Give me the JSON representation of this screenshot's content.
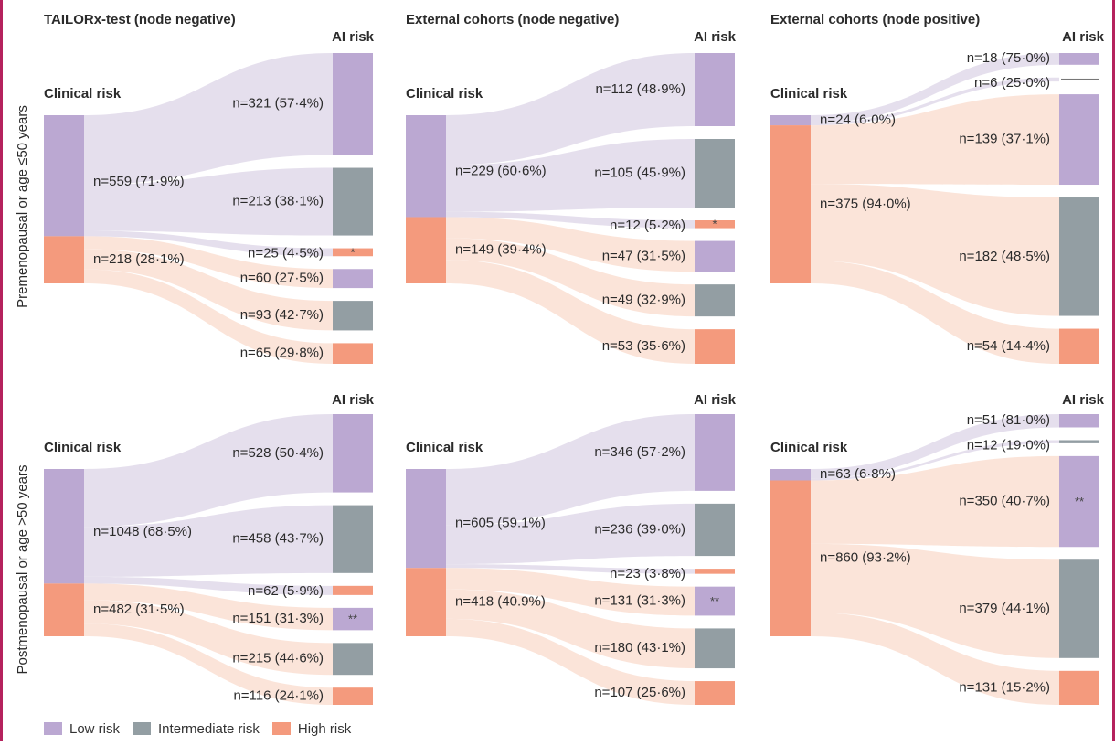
{
  "chart_data": [
    {
      "type": "sankey",
      "title": "TAILORx-test (node negative)",
      "row_label": "Premenopausal or age ≤50 years",
      "left_label": "Clinical risk",
      "right_label": "AI risk",
      "clinical": [
        {
          "risk": "low",
          "n": 559,
          "label": "n=559 (71·9%)"
        },
        {
          "risk": "high",
          "n": 218,
          "label": "n=218 (28·1%)"
        }
      ],
      "flows": [
        {
          "from": "low",
          "to": "low",
          "n": 321,
          "label": "n=321 (57·4%)"
        },
        {
          "from": "low",
          "to": "intermediate",
          "n": 213,
          "label": "n=213 (38·1%)"
        },
        {
          "from": "low",
          "to": "high",
          "n": 25,
          "label": "n=25 (4·5%)",
          "marker": "*"
        },
        {
          "from": "high",
          "to": "low",
          "n": 60,
          "label": "n=60 (27·5%)"
        },
        {
          "from": "high",
          "to": "intermediate",
          "n": 93,
          "label": "n=93 (42·7%)"
        },
        {
          "from": "high",
          "to": "high",
          "n": 65,
          "label": "n=65 (29·8%)"
        }
      ]
    },
    {
      "type": "sankey",
      "title": "External cohorts (node negative)",
      "left_label": "Clinical risk",
      "right_label": "AI risk",
      "clinical": [
        {
          "risk": "low",
          "n": 229,
          "label": "n=229 (60·6%)"
        },
        {
          "risk": "high",
          "n": 149,
          "label": "n=149 (39·4%)"
        }
      ],
      "flows": [
        {
          "from": "low",
          "to": "low",
          "n": 112,
          "label": "n=112 (48·9%)"
        },
        {
          "from": "low",
          "to": "intermediate",
          "n": 105,
          "label": "n=105 (45·9%)"
        },
        {
          "from": "low",
          "to": "high",
          "n": 12,
          "label": "n=12 (5·2%)",
          "marker": "*"
        },
        {
          "from": "high",
          "to": "low",
          "n": 47,
          "label": "n=47 (31·5%)"
        },
        {
          "from": "high",
          "to": "intermediate",
          "n": 49,
          "label": "n=49 (32·9%)"
        },
        {
          "from": "high",
          "to": "high",
          "n": 53,
          "label": "n=53 (35·6%)"
        }
      ]
    },
    {
      "type": "sankey",
      "title": "External cohorts (node positive)",
      "left_label": "Clinical risk",
      "right_label": "AI risk",
      "clinical": [
        {
          "risk": "low",
          "n": 24,
          "label": "n=24 (6·0%)"
        },
        {
          "risk": "high",
          "n": 375,
          "label": "n=375 (94·0%)"
        }
      ],
      "flows": [
        {
          "from": "low",
          "to": "low",
          "n": 18,
          "label": "n=18 (75·0%)"
        },
        {
          "from": "low",
          "to": "intermediate",
          "n": 6,
          "label": "n=6 (25·0%)"
        },
        {
          "from": "high",
          "to": "low",
          "n": 139,
          "label": "n=139 (37·1%)"
        },
        {
          "from": "high",
          "to": "intermediate",
          "n": 182,
          "label": "n=182 (48·5%)"
        },
        {
          "from": "high",
          "to": "high",
          "n": 54,
          "label": "n=54 (14·4%)"
        }
      ]
    },
    {
      "type": "sankey",
      "title": "",
      "row_label": "Postmenopausal or age >50 years",
      "left_label": "Clinical risk",
      "right_label": "AI risk",
      "clinical": [
        {
          "risk": "low",
          "n": 1048,
          "label": "n=1048 (68·5%)"
        },
        {
          "risk": "high",
          "n": 482,
          "label": "n=482 (31·5%)"
        }
      ],
      "flows": [
        {
          "from": "low",
          "to": "low",
          "n": 528,
          "label": "n=528 (50·4%)"
        },
        {
          "from": "low",
          "to": "intermediate",
          "n": 458,
          "label": "n=458 (43·7%)"
        },
        {
          "from": "low",
          "to": "high",
          "n": 62,
          "label": "n=62 (5·9%)"
        },
        {
          "from": "high",
          "to": "low",
          "n": 151,
          "label": "n=151 (31·3%)",
          "marker": "**"
        },
        {
          "from": "high",
          "to": "intermediate",
          "n": 215,
          "label": "n=215 (44·6%)"
        },
        {
          "from": "high",
          "to": "high",
          "n": 116,
          "label": "n=116 (24·1%)"
        }
      ]
    },
    {
      "type": "sankey",
      "title": "",
      "left_label": "Clinical risk",
      "right_label": "AI risk",
      "clinical": [
        {
          "risk": "low",
          "n": 605,
          "label": "n=605 (59.1%)"
        },
        {
          "risk": "high",
          "n": 418,
          "label": "n=418 (40.9%)"
        }
      ],
      "flows": [
        {
          "from": "low",
          "to": "low",
          "n": 346,
          "label": "n=346 (57·2%)"
        },
        {
          "from": "low",
          "to": "intermediate",
          "n": 236,
          "label": "n=236 (39·0%)"
        },
        {
          "from": "low",
          "to": "high",
          "n": 23,
          "label": "n=23 (3·8%)"
        },
        {
          "from": "high",
          "to": "low",
          "n": 131,
          "label": "n=131 (31·3%)",
          "marker": "**"
        },
        {
          "from": "high",
          "to": "intermediate",
          "n": 180,
          "label": "n=180 (43·1%)"
        },
        {
          "from": "high",
          "to": "high",
          "n": 107,
          "label": "n=107 (25·6%)"
        }
      ]
    },
    {
      "type": "sankey",
      "title": "",
      "left_label": "Clinical risk",
      "right_label": "AI risk",
      "clinical": [
        {
          "risk": "low",
          "n": 63,
          "label": "n=63 (6·8%)"
        },
        {
          "risk": "high",
          "n": 860,
          "label": "n=860 (93·2%)"
        }
      ],
      "flows": [
        {
          "from": "low",
          "to": "low",
          "n": 51,
          "label": "n=51 (81·0%)"
        },
        {
          "from": "low",
          "to": "intermediate",
          "n": 12,
          "label": "n=12 (19·0%)"
        },
        {
          "from": "high",
          "to": "low",
          "n": 350,
          "label": "n=350 (40·7%)",
          "marker": "**"
        },
        {
          "from": "high",
          "to": "intermediate",
          "n": 379,
          "label": "n=379 (44·1%)"
        },
        {
          "from": "high",
          "to": "high",
          "n": 131,
          "label": "n=131 (15·2%)"
        }
      ]
    }
  ],
  "legend": {
    "low": "Low risk",
    "intermediate": "Intermediate risk",
    "high": "High risk"
  },
  "colors": {
    "low": "#bba8d2",
    "intermediate": "#939ea3",
    "high": "#f49a7d",
    "low_flow": "#e4ddec",
    "high_flow": "#fbe3d7",
    "frame": "#b5225d"
  }
}
